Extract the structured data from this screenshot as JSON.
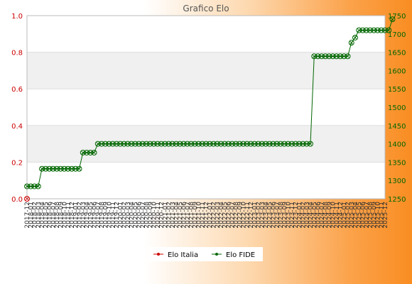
{
  "chart_data": {
    "type": "line",
    "title": "Grafico Elo",
    "y_left": {
      "min": 0.0,
      "max": 1.0,
      "ticks": [
        "0.0",
        "0.2",
        "0.4",
        "0.6",
        "0.8",
        "1.0"
      ],
      "color": "#cc0000"
    },
    "y_right": {
      "min": 1250,
      "max": 1750,
      "ticks": [
        "1250",
        "1300",
        "1350",
        "1400",
        "1450",
        "1500",
        "1550",
        "1600",
        "1650",
        "1700",
        "1750"
      ],
      "color": "#006600"
    },
    "x_labels": [
      "2017-12",
      "2018-01",
      "2018-02",
      "2018-03",
      "2018-04",
      "2018-05",
      "2018-06",
      "2018-07",
      "2018-08",
      "2018-09",
      "2018-10",
      "2018-11",
      "2018-12",
      "2019-01",
      "2019-02",
      "2019-03",
      "2019-04",
      "2019-05",
      "2019-06",
      "2019-07",
      "2019-08",
      "2019-09",
      "2019-10",
      "2019-11",
      "2019-12",
      "2020-01",
      "2020-02",
      "2020-03",
      "2020-04",
      "2020-05",
      "2020-06",
      "2020-07",
      "2020-08",
      "2020-09",
      "2020-10",
      "2020-11",
      "2020-12",
      "2021-01",
      "2021-02",
      "2021-03",
      "2021-04",
      "2021-05",
      "2021-06",
      "2021-07",
      "2021-08",
      "2021-09",
      "2021-10",
      "2021-11",
      "2021-12",
      "2022-01",
      "2022-02",
      "2022-03",
      "2022-04",
      "2022-05",
      "2022-06",
      "2022-07",
      "2022-08",
      "2022-09",
      "2022-10",
      "2022-11",
      "2022-12",
      "2023-01",
      "2023-02",
      "2023-03",
      "2023-04",
      "2023-05",
      "2023-06",
      "2023-07",
      "2023-08",
      "2023-09",
      "2023-10",
      "2023-11",
      "2023-12",
      "2024-01",
      "2024-02",
      "2024-03",
      "2024-04",
      "2024-05",
      "2024-06",
      "2024-07",
      "2024-08",
      "2024-09",
      "2024-10",
      "2024-11",
      "2024-12",
      "2025-01",
      "2025-02",
      "2025-03",
      "2025-04",
      "2025-05",
      "2025-06",
      "2025-07",
      "2025-08",
      "2025-09",
      "2025-10",
      "2025-11",
      "2025-12"
    ],
    "series": [
      {
        "name": "Elo Italia",
        "axis": "left",
        "color": "#cc0000",
        "values": [
          0.0
        ]
      },
      {
        "name": "Elo FIDE",
        "axis": "right",
        "color": "#006600",
        "values": [
          1284,
          1284,
          1284,
          1284,
          1332,
          1332,
          1332,
          1332,
          1332,
          1332,
          1332,
          1332,
          1332,
          1332,
          1332,
          1376,
          1376,
          1376,
          1376,
          1400,
          1400,
          1400,
          1400,
          1400,
          1400,
          1400,
          1400,
          1400,
          1400,
          1400,
          1400,
          1400,
          1400,
          1400,
          1400,
          1400,
          1400,
          1400,
          1400,
          1400,
          1400,
          1400,
          1400,
          1400,
          1400,
          1400,
          1400,
          1400,
          1400,
          1400,
          1400,
          1400,
          1400,
          1400,
          1400,
          1400,
          1400,
          1400,
          1400,
          1400,
          1400,
          1400,
          1400,
          1400,
          1400,
          1400,
          1400,
          1400,
          1400,
          1400,
          1400,
          1400,
          1400,
          1400,
          1400,
          1400,
          1400,
          1639,
          1639,
          1639,
          1639,
          1639,
          1639,
          1639,
          1639,
          1639,
          1639,
          1676,
          1690,
          1710,
          1710,
          1710,
          1710,
          1710,
          1710,
          1710,
          1710,
          1710,
          1740
        ]
      }
    ],
    "legend": {
      "position": "bottom-center"
    },
    "grid": true
  }
}
